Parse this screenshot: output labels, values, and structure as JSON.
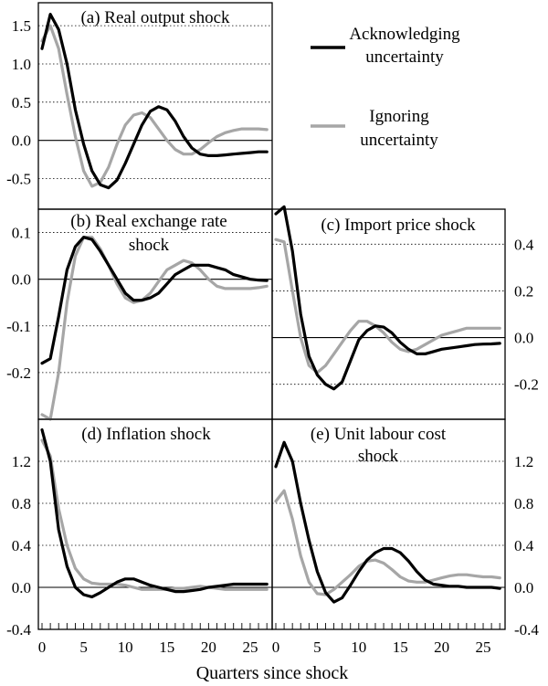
{
  "figure": {
    "x_axis_label": "Quarters since shock",
    "x_ticks": [
      0,
      5,
      10,
      15,
      20,
      25
    ]
  },
  "legend": {
    "items": [
      {
        "label_line1": "Acknowledging",
        "label_line2": "uncertainty",
        "color": "#000000"
      },
      {
        "label_line1": "Ignoring",
        "label_line2": "uncertainty",
        "color": "#a6a6a6"
      }
    ]
  },
  "colors": {
    "acknowledging": "#000000",
    "ignoring": "#a6a6a6",
    "gridline": "#000000"
  },
  "chart_data": [
    {
      "id": "a",
      "type": "line",
      "title": "(a) Real output shock",
      "title_line2": "",
      "y_axis_side": "left",
      "ylim": [
        -0.9,
        1.8
      ],
      "yticks": [
        -0.5,
        0.0,
        0.5,
        1.0,
        1.5
      ],
      "ytick_labels": [
        "-0.5",
        "0.0",
        "0.5",
        "1.0",
        "1.5"
      ],
      "x": [
        0,
        1,
        2,
        3,
        4,
        5,
        6,
        7,
        8,
        9,
        10,
        11,
        12,
        13,
        14,
        15,
        16,
        17,
        18,
        19,
        20,
        21,
        22,
        23,
        24,
        25,
        26,
        27
      ],
      "series": [
        {
          "name": "Acknowledging uncertainty",
          "values": [
            1.2,
            1.65,
            1.45,
            1.0,
            0.4,
            -0.05,
            -0.4,
            -0.58,
            -0.62,
            -0.52,
            -0.3,
            -0.05,
            0.2,
            0.38,
            0.44,
            0.4,
            0.25,
            0.05,
            -0.1,
            -0.18,
            -0.2,
            -0.2,
            -0.19,
            -0.18,
            -0.17,
            -0.16,
            -0.15,
            -0.15
          ]
        },
        {
          "name": "Ignoring uncertainty",
          "values": [
            1.3,
            1.5,
            1.2,
            0.6,
            0.05,
            -0.4,
            -0.6,
            -0.55,
            -0.35,
            -0.05,
            0.2,
            0.33,
            0.36,
            0.3,
            0.15,
            0.0,
            -0.12,
            -0.18,
            -0.18,
            -0.12,
            -0.03,
            0.05,
            0.1,
            0.13,
            0.15,
            0.15,
            0.15,
            0.14
          ]
        }
      ]
    },
    {
      "id": "b",
      "type": "line",
      "title": "(b) Real exchange rate",
      "title_line2": "shock",
      "y_axis_side": "left",
      "ylim": [
        -0.3,
        0.15
      ],
      "yticks": [
        -0.2,
        -0.1,
        0.0,
        0.1
      ],
      "ytick_labels": [
        "-0.2",
        "-0.1",
        "0.0",
        "0.1"
      ],
      "x": [
        0,
        1,
        2,
        3,
        4,
        5,
        6,
        7,
        8,
        9,
        10,
        11,
        12,
        13,
        14,
        15,
        16,
        17,
        18,
        19,
        20,
        21,
        22,
        23,
        24,
        25,
        26,
        27
      ],
      "series": [
        {
          "name": "Acknowledging uncertainty",
          "values": [
            -0.18,
            -0.17,
            -0.08,
            0.02,
            0.07,
            0.09,
            0.085,
            0.06,
            0.03,
            0.0,
            -0.03,
            -0.045,
            -0.045,
            -0.04,
            -0.03,
            -0.01,
            0.01,
            0.02,
            0.03,
            0.03,
            0.03,
            0.025,
            0.02,
            0.01,
            0.005,
            0.0,
            -0.002,
            -0.003
          ]
        },
        {
          "name": "Ignoring uncertainty",
          "values": [
            -0.29,
            -0.3,
            -0.2,
            -0.05,
            0.05,
            0.09,
            0.09,
            0.065,
            0.03,
            -0.01,
            -0.04,
            -0.05,
            -0.045,
            -0.03,
            -0.005,
            0.02,
            0.03,
            0.04,
            0.035,
            0.02,
            0.0,
            -0.015,
            -0.02,
            -0.02,
            -0.02,
            -0.02,
            -0.018,
            -0.015
          ]
        }
      ]
    },
    {
      "id": "c",
      "type": "line",
      "title": "(c) Import price shock",
      "title_line2": "",
      "y_axis_side": "right",
      "ylim": [
        -0.35,
        0.55
      ],
      "yticks": [
        -0.2,
        0.0,
        0.2,
        0.4
      ],
      "ytick_labels": [
        "-0.2",
        "0.0",
        "0.2",
        "0.4"
      ],
      "x": [
        0,
        1,
        2,
        3,
        4,
        5,
        6,
        7,
        8,
        9,
        10,
        11,
        12,
        13,
        14,
        15,
        16,
        17,
        18,
        19,
        20,
        21,
        22,
        23,
        24,
        25,
        26,
        27
      ],
      "series": [
        {
          "name": "Acknowledging uncertainty",
          "values": [
            0.53,
            0.56,
            0.37,
            0.1,
            -0.08,
            -0.16,
            -0.2,
            -0.22,
            -0.19,
            -0.1,
            -0.01,
            0.03,
            0.05,
            0.045,
            0.02,
            -0.02,
            -0.05,
            -0.07,
            -0.07,
            -0.06,
            -0.05,
            -0.045,
            -0.04,
            -0.035,
            -0.03,
            -0.028,
            -0.027,
            -0.025
          ]
        },
        {
          "name": "Ignoring uncertainty",
          "values": [
            0.42,
            0.41,
            0.2,
            0.0,
            -0.12,
            -0.15,
            -0.12,
            -0.07,
            -0.02,
            0.03,
            0.07,
            0.07,
            0.05,
            0.02,
            -0.02,
            -0.05,
            -0.06,
            -0.05,
            -0.03,
            -0.01,
            0.01,
            0.02,
            0.03,
            0.04,
            0.04,
            0.04,
            0.04,
            0.04
          ]
        }
      ]
    },
    {
      "id": "d",
      "type": "line",
      "title": "(d) Inflation shock",
      "title_line2": "",
      "y_axis_side": "left",
      "ylim": [
        -0.4,
        1.6
      ],
      "yticks": [
        -0.4,
        0.0,
        0.4,
        0.8,
        1.2
      ],
      "ytick_labels": [
        "-0.4",
        "0.0",
        "0.4",
        "0.8",
        "1.2"
      ],
      "x": [
        0,
        1,
        2,
        3,
        4,
        5,
        6,
        7,
        8,
        9,
        10,
        11,
        12,
        13,
        14,
        15,
        16,
        17,
        18,
        19,
        20,
        21,
        22,
        23,
        24,
        25,
        26,
        27
      ],
      "series": [
        {
          "name": "Acknowledging uncertainty",
          "values": [
            1.5,
            1.2,
            0.55,
            0.2,
            0.0,
            -0.07,
            -0.09,
            -0.05,
            0.0,
            0.05,
            0.08,
            0.08,
            0.05,
            0.02,
            0.0,
            -0.02,
            -0.04,
            -0.04,
            -0.03,
            -0.02,
            0.0,
            0.01,
            0.02,
            0.03,
            0.03,
            0.03,
            0.03,
            0.03
          ]
        },
        {
          "name": "Ignoring uncertainty",
          "values": [
            1.4,
            1.25,
            0.75,
            0.4,
            0.18,
            0.08,
            0.04,
            0.03,
            0.03,
            0.03,
            0.02,
            0.0,
            -0.02,
            -0.02,
            -0.02,
            -0.02,
            -0.01,
            -0.01,
            0.0,
            0.01,
            0.0,
            -0.01,
            -0.02,
            -0.02,
            -0.02,
            -0.02,
            -0.02,
            -0.02
          ]
        }
      ]
    },
    {
      "id": "e",
      "type": "line",
      "title": "(e) Unit labour cost",
      "title_line2": "shock",
      "y_axis_side": "right",
      "ylim": [
        -0.4,
        1.6
      ],
      "yticks": [
        -0.4,
        0.0,
        0.4,
        0.8,
        1.2
      ],
      "ytick_labels": [
        "-0.4",
        "0.0",
        "0.4",
        "0.8",
        "1.2"
      ],
      "x": [
        0,
        1,
        2,
        3,
        4,
        5,
        6,
        7,
        8,
        9,
        10,
        11,
        12,
        13,
        14,
        15,
        16,
        17,
        18,
        19,
        20,
        21,
        22,
        23,
        24,
        25,
        26,
        27
      ],
      "series": [
        {
          "name": "Acknowledging uncertainty",
          "values": [
            1.15,
            1.38,
            1.2,
            0.8,
            0.45,
            0.15,
            -0.05,
            -0.14,
            -0.1,
            0.02,
            0.15,
            0.26,
            0.33,
            0.37,
            0.37,
            0.33,
            0.25,
            0.15,
            0.07,
            0.03,
            0.02,
            0.01,
            0.01,
            0.0,
            0.0,
            0.0,
            0.0,
            -0.01
          ]
        },
        {
          "name": "Ignoring uncertainty",
          "values": [
            0.82,
            0.92,
            0.65,
            0.3,
            0.05,
            -0.06,
            -0.07,
            -0.02,
            0.05,
            0.12,
            0.2,
            0.25,
            0.26,
            0.23,
            0.17,
            0.1,
            0.06,
            0.05,
            0.05,
            0.07,
            0.09,
            0.11,
            0.12,
            0.12,
            0.11,
            0.1,
            0.1,
            0.09
          ]
        }
      ]
    }
  ]
}
